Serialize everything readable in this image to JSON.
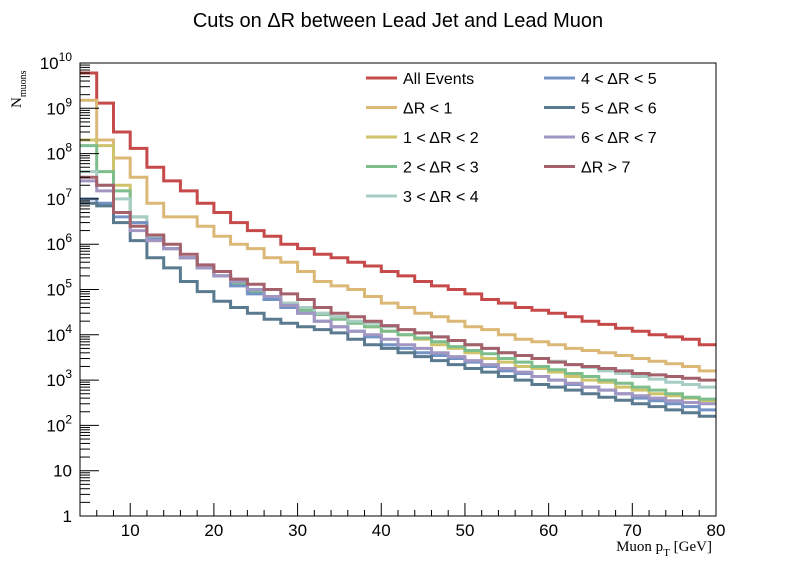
{
  "chart_data": {
    "type": "line",
    "title": "Cuts on ΔR between Lead Jet and Lead Muon",
    "xlabel": "Muon p_T [GeV]",
    "ylabel": "N_muons",
    "xlim": [
      4,
      80
    ],
    "ylim": [
      1,
      10000000000
    ],
    "yscale": "log",
    "x_ticks": [
      10,
      20,
      30,
      40,
      50,
      60,
      70,
      80
    ],
    "y_ticks": [
      {
        "value": 1,
        "label": "1"
      },
      {
        "value": 10,
        "label": "10"
      },
      {
        "value": 100,
        "label": "10^2"
      },
      {
        "value": 1000,
        "label": "10^3"
      },
      {
        "value": 10000,
        "label": "10^4"
      },
      {
        "value": 100000,
        "label": "10^5"
      },
      {
        "value": 1000000,
        "label": "10^6"
      },
      {
        "value": 10000000,
        "label": "10^7"
      },
      {
        "value": 100000000,
        "label": "10^8"
      },
      {
        "value": 1000000000,
        "label": "10^9"
      },
      {
        "value": 10000000000,
        "label": "10^10"
      }
    ],
    "grid": false,
    "legend_position": "top-right",
    "bin_edges": [
      4,
      6,
      8,
      10,
      12,
      14,
      16,
      18,
      20,
      22,
      24,
      26,
      28,
      30,
      32,
      34,
      36,
      38,
      40,
      42,
      44,
      46,
      48,
      50,
      52,
      54,
      56,
      58,
      60,
      62,
      64,
      66,
      68,
      70,
      72,
      74,
      76,
      78,
      80
    ],
    "series": [
      {
        "name": "All Events",
        "color": "#c74a4a",
        "values": [
          6000000000,
          1300000000,
          300000000,
          130000000,
          50000000,
          25000000,
          15000000,
          8000000,
          5000000,
          3000000,
          2000000,
          1500000,
          1000000,
          800000,
          600000,
          500000,
          400000,
          330000,
          250000,
          200000,
          150000,
          120000,
          100000,
          80000,
          60000,
          50000,
          40000,
          35000,
          30000,
          25000,
          20000,
          17000,
          14000,
          12000,
          10000,
          9000,
          8000,
          6000
        ]
      },
      {
        "name": "ΔR < 1",
        "color": "#dbb876",
        "values": [
          1500000000,
          200000000,
          80000000,
          30000000,
          8000000,
          4000000,
          4000000,
          2500000,
          1500000,
          1000000,
          800000,
          500000,
          400000,
          250000,
          150000,
          120000,
          100000,
          70000,
          50000,
          40000,
          30000,
          25000,
          20000,
          15000,
          13000,
          10000,
          8000,
          7000,
          6000,
          5000,
          4500,
          4000,
          3500,
          3000,
          2600,
          2300,
          2000,
          1600
        ]
      },
      {
        "name": "1 < ΔR < 2",
        "color": "#cfc36b",
        "values": [
          200000000,
          150000000,
          20000000,
          3000000,
          1200000,
          800000,
          500000,
          300000,
          200000,
          150000,
          100000,
          70000,
          50000,
          40000,
          30000,
          25000,
          20000,
          15000,
          12000,
          10000,
          8000,
          6000,
          5000,
          4000,
          3000,
          2500,
          2000,
          1800,
          1500,
          1200,
          1000,
          900,
          700,
          600,
          500,
          450,
          400,
          350
        ]
      },
      {
        "name": "2 < ΔR < 3",
        "color": "#7ebd8c",
        "values": [
          150000000,
          40000000,
          15000000,
          4000000,
          1500000,
          800000,
          500000,
          300000,
          200000,
          130000,
          90000,
          60000,
          45000,
          35000,
          28000,
          22000,
          18000,
          15000,
          12000,
          10000,
          8500,
          7000,
          5500,
          4500,
          3800,
          3000,
          2500,
          2000,
          1700,
          1400,
          1200,
          1000,
          850,
          700,
          600,
          500,
          420,
          380
        ]
      },
      {
        "name": "3 < ΔR < 4",
        "color": "#a7cdc4",
        "values": [
          40000000,
          20000000,
          10000000,
          4000000,
          1500000,
          800000,
          500000,
          300000,
          200000,
          150000,
          100000,
          70000,
          50000,
          40000,
          30000,
          25000,
          20000,
          18000,
          15000,
          13000,
          11000,
          9000,
          7500,
          6000,
          5000,
          4000,
          3500,
          3000,
          2600,
          2200,
          1900,
          1600,
          1400,
          1200,
          1050,
          900,
          800,
          700
        ]
      },
      {
        "name": "4 < ΔR < 5",
        "color": "#7393c5",
        "values": [
          10000000,
          8000000,
          4000000,
          3000000,
          1300000,
          800000,
          500000,
          300000,
          200000,
          120000,
          80000,
          60000,
          40000,
          30000,
          20000,
          15000,
          12000,
          9000,
          6000,
          5000,
          4000,
          3500,
          3000,
          2500,
          2000,
          1600,
          1400,
          1200,
          1000,
          800,
          700,
          600,
          500,
          400,
          350,
          300,
          260,
          220
        ]
      },
      {
        "name": "5 < ΔR < 6",
        "color": "#5a7a8f",
        "values": [
          8000000,
          7000000,
          3000000,
          1200000,
          500000,
          300000,
          150000,
          90000,
          55000,
          40000,
          30000,
          22000,
          18000,
          15000,
          13000,
          11000,
          8000,
          6000,
          5000,
          4000,
          3300,
          2700,
          2200,
          1800,
          1500,
          1200,
          1000,
          800,
          700,
          600,
          500,
          420,
          360,
          300,
          260,
          220,
          190,
          160
        ]
      },
      {
        "name": "6 < ΔR < 7",
        "color": "#a296c3",
        "values": [
          25000000,
          15000000,
          5000000,
          2000000,
          1200000,
          800000,
          500000,
          300000,
          200000,
          150000,
          100000,
          70000,
          45000,
          30000,
          20000,
          15000,
          12000,
          10000,
          8000,
          6000,
          5000,
          4000,
          3300,
          2700,
          2200,
          1800,
          1500,
          1200,
          1000,
          850,
          700,
          600,
          500,
          450,
          400,
          350,
          320,
          300
        ]
      },
      {
        "name": "ΔR > 7",
        "color": "#a4616b",
        "values": [
          30000000,
          20000000,
          5000000,
          2500000,
          1600000,
          1000000,
          600000,
          350000,
          250000,
          170000,
          130000,
          100000,
          80000,
          60000,
          40000,
          30000,
          25000,
          20000,
          16000,
          13000,
          11000,
          9000,
          7500,
          6000,
          5000,
          4000,
          3500,
          3000,
          2500,
          2200,
          2000,
          1800,
          1600,
          1400,
          1300,
          1200,
          1100,
          1000
        ]
      }
    ]
  }
}
